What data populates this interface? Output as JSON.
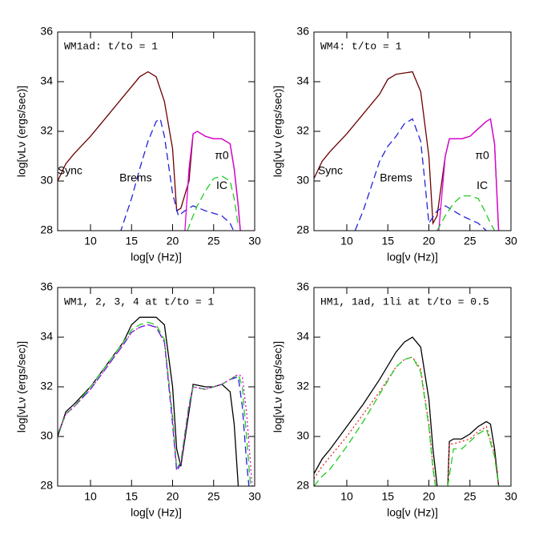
{
  "chart_data": [
    {
      "type": "line",
      "title": "WM1ad: t/to = 1",
      "xlabel": "log[ν (Hz)]",
      "ylabel": "log[νLν (ergs/sec)]",
      "xlim": [
        6,
        30
      ],
      "ylim": [
        28,
        36
      ],
      "xticks": [
        10,
        15,
        20,
        25,
        30
      ],
      "yticks": [
        28,
        30,
        32,
        34,
        36
      ],
      "annotations": [
        "Sync",
        "Brems",
        "π0",
        "IC"
      ],
      "series": [
        {
          "color": "#6b0000",
          "dash": "solid",
          "x": [
            6,
            7,
            8,
            10,
            12,
            14,
            16,
            17,
            18,
            19,
            20,
            20.5,
            21,
            22,
            22.5,
            23,
            24,
            25,
            26,
            27,
            27.5,
            28,
            28.3
          ],
          "values": [
            30.0,
            30.7,
            31.1,
            31.8,
            32.6,
            33.4,
            34.2,
            34.4,
            34.2,
            33.2,
            31.3,
            28.8,
            28.9,
            30.0,
            31.9,
            32.0,
            31.8,
            31.7,
            31.7,
            31.5,
            30.5,
            29.0,
            27.8
          ]
        },
        {
          "color": "#2222dd",
          "dash": "dashed",
          "x": [
            13.6,
            14,
            15,
            16,
            17,
            18,
            18.5,
            19,
            20,
            20.7,
            21.5,
            22.5,
            24,
            26,
            27,
            27.7
          ],
          "values": [
            27.9,
            28.3,
            29.3,
            30.5,
            31.6,
            32.4,
            32.5,
            31.8,
            29.5,
            28.6,
            28.8,
            29.0,
            28.8,
            28.6,
            28.3,
            27.8
          ]
        },
        {
          "color": "#dd00dd",
          "dash": "solid",
          "x": [
            21.5,
            22,
            22.5,
            23,
            24,
            25,
            26,
            27,
            27.5,
            28,
            28.3
          ],
          "values": [
            28.0,
            30.5,
            31.9,
            32.0,
            31.8,
            31.7,
            31.7,
            31.5,
            30.5,
            29.0,
            27.8
          ]
        },
        {
          "color": "#22cc22",
          "dash": "dashed",
          "x": [
            21.8,
            22.5,
            23,
            24,
            25,
            26,
            27,
            27.5,
            28
          ],
          "values": [
            28.0,
            28.6,
            29.0,
            29.6,
            30.1,
            30.2,
            30.0,
            29.3,
            28.2
          ]
        }
      ]
    },
    {
      "type": "line",
      "title": "WM4: t/to = 1",
      "xlabel": "log[ν (Hz)]",
      "ylabel": "log[νLν (ergs/sec)]",
      "xlim": [
        6,
        30
      ],
      "ylim": [
        28,
        36
      ],
      "xticks": [
        10,
        15,
        20,
        25,
        30
      ],
      "yticks": [
        28,
        30,
        32,
        34,
        36
      ],
      "annotations": [
        "Sync",
        "Brems",
        "π0",
        "IC"
      ],
      "series": [
        {
          "color": "#6b0000",
          "dash": "solid",
          "x": [
            6,
            7,
            8,
            10,
            12,
            14,
            15,
            16,
            18,
            19,
            20,
            20.5,
            21,
            22,
            22.5,
            24,
            25,
            26,
            27,
            27.5,
            28,
            28.5
          ],
          "values": [
            30.1,
            30.8,
            31.2,
            31.9,
            32.7,
            33.5,
            34.1,
            34.3,
            34.4,
            33.6,
            31.0,
            28.3,
            28.6,
            31.0,
            31.7,
            31.7,
            31.8,
            32.1,
            32.4,
            32.5,
            31.5,
            28.0
          ]
        },
        {
          "color": "#2222dd",
          "dash": "dashed",
          "x": [
            11,
            12,
            13,
            14,
            15,
            16,
            17,
            18,
            19,
            19.5,
            20,
            21,
            22,
            24,
            26,
            27
          ],
          "values": [
            28.0,
            28.8,
            29.8,
            30.8,
            31.4,
            31.8,
            32.3,
            32.5,
            31.6,
            30.0,
            28.3,
            28.8,
            29.0,
            28.6,
            28.3,
            28.0
          ]
        },
        {
          "color": "#dd00dd",
          "dash": "solid",
          "x": [
            21.2,
            22,
            22.5,
            24,
            25,
            26,
            27,
            27.5,
            28,
            28.5
          ],
          "values": [
            28.0,
            31.0,
            31.7,
            31.7,
            31.8,
            32.1,
            32.4,
            32.5,
            31.5,
            28.0
          ]
        },
        {
          "color": "#22cc22",
          "dash": "dashed",
          "x": [
            21,
            22,
            23,
            24,
            25,
            26,
            26.5,
            27.5,
            28
          ],
          "values": [
            28.0,
            28.6,
            29.1,
            29.4,
            29.4,
            29.3,
            29.0,
            28.3,
            28.0
          ]
        }
      ]
    },
    {
      "type": "line",
      "title": "WM1, 2, 3, 4 at t/to = 1",
      "xlabel": "log[ν (Hz)]",
      "ylabel": "log[νLν (ergs/sec)]",
      "xlim": [
        6,
        30
      ],
      "ylim": [
        28,
        36
      ],
      "xticks": [
        10,
        15,
        20,
        25,
        30
      ],
      "yticks": [
        28,
        30,
        32,
        34,
        36
      ],
      "annotations": [],
      "series": [
        {
          "color": "#000000",
          "dash": "solid",
          "x": [
            6,
            7,
            8,
            10,
            12,
            14,
            15,
            16,
            18,
            19,
            20,
            20.5,
            21,
            22,
            22.5,
            24,
            25,
            26,
            27,
            27.5,
            28
          ],
          "values": [
            30.0,
            31.0,
            31.3,
            32.0,
            32.9,
            33.8,
            34.5,
            34.8,
            34.8,
            34.5,
            32.0,
            29.5,
            28.8,
            31.0,
            32.1,
            32.0,
            32.0,
            32.1,
            31.8,
            30.5,
            28.0
          ]
        },
        {
          "color": "#2222dd",
          "dash": "dashed",
          "x": [
            6,
            7,
            8,
            10,
            12,
            14,
            15,
            16,
            17,
            18,
            19,
            20,
            20.5,
            21,
            22,
            22.5,
            24,
            25,
            26,
            27,
            28,
            28.5,
            29,
            29.3
          ],
          "values": [
            30.1,
            30.9,
            31.2,
            31.9,
            32.8,
            33.7,
            34.2,
            34.4,
            34.5,
            34.4,
            33.8,
            30.5,
            28.6,
            28.9,
            31.2,
            32.0,
            31.9,
            32.0,
            32.1,
            32.3,
            32.4,
            31.2,
            29.0,
            28.0
          ]
        },
        {
          "color": "#22cc22",
          "dash": "dashed",
          "x": [
            6,
            7,
            8,
            10,
            12,
            14,
            15,
            16,
            17,
            18,
            19,
            20,
            20.5,
            21,
            22,
            22.5,
            24,
            25,
            26,
            27,
            28,
            28.5,
            29,
            29.5
          ],
          "values": [
            30.1,
            30.9,
            31.2,
            32.0,
            32.9,
            33.8,
            34.3,
            34.5,
            34.6,
            34.5,
            33.9,
            30.8,
            28.7,
            29.0,
            31.3,
            32.0,
            31.9,
            32.0,
            32.1,
            32.3,
            32.5,
            32.0,
            30.0,
            28.0
          ]
        },
        {
          "color": "#dd00dd",
          "dash": "dotted",
          "x": [
            6,
            7,
            8,
            10,
            12,
            14,
            15,
            16,
            17,
            18,
            19,
            20,
            20.5,
            21,
            22,
            22.5,
            24,
            25,
            26,
            27,
            28,
            28.5,
            29,
            29.7
          ],
          "values": [
            30.1,
            30.9,
            31.2,
            31.9,
            32.8,
            33.7,
            34.2,
            34.4,
            34.5,
            34.4,
            33.8,
            30.6,
            28.7,
            28.9,
            31.2,
            32.0,
            31.9,
            32.0,
            32.1,
            32.3,
            32.5,
            32.4,
            31.0,
            28.0
          ]
        }
      ]
    },
    {
      "type": "line",
      "title": "HM1, 1ad, 1li at t/to = 0.5",
      "xlabel": "log[ν (Hz)]",
      "ylabel": "log[νLν (ergs/sec)]",
      "xlim": [
        6,
        30
      ],
      "ylim": [
        28,
        36
      ],
      "xticks": [
        10,
        15,
        20,
        25,
        30
      ],
      "yticks": [
        28,
        30,
        32,
        34,
        36
      ],
      "annotations": [],
      "series": [
        {
          "color": "#000000",
          "dash": "solid",
          "x": [
            6,
            7,
            8,
            10,
            12,
            14,
            16,
            17,
            18,
            19,
            20,
            20.5,
            21,
            21.5,
            22.3,
            22.5,
            23,
            24,
            25,
            26,
            27,
            27.5,
            28,
            28.5
          ],
          "values": [
            28.5,
            29.1,
            29.5,
            30.4,
            31.3,
            32.3,
            33.4,
            33.8,
            34.0,
            33.6,
            31.5,
            29.5,
            28.0,
            null,
            28.0,
            29.8,
            29.9,
            29.9,
            30.1,
            30.4,
            30.6,
            30.5,
            29.5,
            28.0
          ]
        },
        {
          "color": "#ee2222",
          "dash": "dotted",
          "x": [
            6,
            7,
            8,
            10,
            12,
            14,
            16,
            17,
            18,
            19,
            20,
            20.5,
            20.8,
            21.5,
            22.3,
            22.5,
            23,
            25,
            26,
            27,
            28,
            28.5
          ],
          "values": [
            28.3,
            28.8,
            29.2,
            30.0,
            30.9,
            31.8,
            32.8,
            33.1,
            33.2,
            32.7,
            30.5,
            28.8,
            28.0,
            null,
            28.0,
            29.7,
            29.7,
            29.9,
            30.2,
            30.4,
            29.3,
            28.0
          ]
        },
        {
          "color": "#22cc22",
          "dash": "dashed",
          "x": [
            6,
            7,
            8,
            10,
            12,
            14,
            16,
            17,
            18,
            19,
            20,
            20.5,
            20.8,
            21.5,
            22.3,
            23,
            24,
            25,
            26,
            27,
            28,
            28.5
          ],
          "values": [
            28.0,
            28.4,
            28.7,
            29.6,
            30.6,
            31.7,
            32.8,
            33.1,
            33.2,
            32.6,
            30.4,
            28.7,
            28.0,
            null,
            28.0,
            29.5,
            29.5,
            29.8,
            30.1,
            30.3,
            29.2,
            28.0
          ]
        }
      ]
    }
  ]
}
